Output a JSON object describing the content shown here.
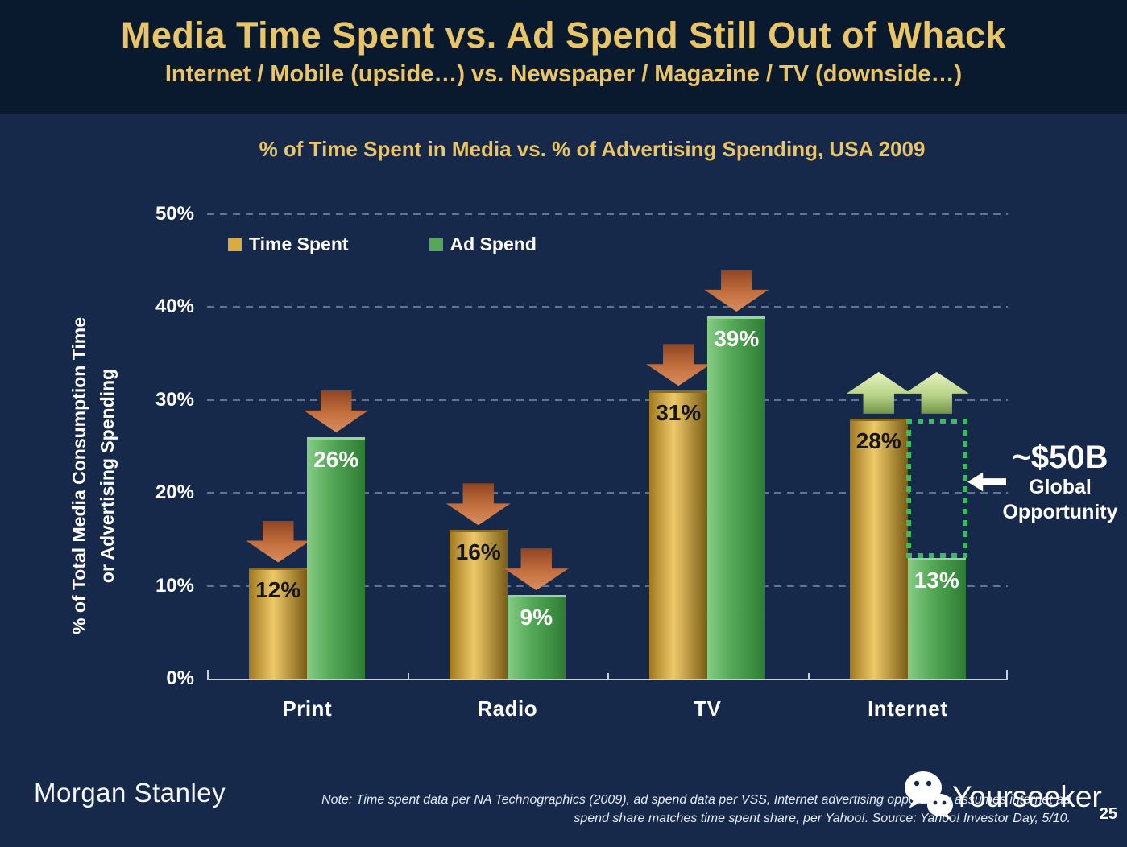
{
  "palette": {
    "background": "#16294a",
    "header_background": "#0a1a2e",
    "gold_text": "#eac567",
    "grid_color": "rgba(190,205,228,0.45)",
    "axis_color": "#c6d0df",
    "opportunity_green": "#3db863"
  },
  "header": {
    "title": "Media Time Spent vs. Ad Spend Still Out of Whack",
    "subtitle": "Internet / Mobile (upside…) vs. Newspaper / Magazine / TV (downside…)"
  },
  "chart_data": {
    "type": "bar",
    "title": "% of Time Spent in Media vs. % of Advertising Spending, USA 2009",
    "ylabel_line1": "% of Total Media Consumption Time",
    "ylabel_line2": "or Advertising Spending",
    "categories": [
      "Print",
      "Radio",
      "TV",
      "Internet"
    ],
    "series": [
      {
        "name": "Time Spent",
        "values": [
          12,
          16,
          31,
          28
        ],
        "swatch": "#d9ab44",
        "gradient": [
          "#a0791f",
          "#eec968",
          "#7a5c15"
        ],
        "cap": "#8a6a22",
        "label_color": "#161616"
      },
      {
        "name": "Ad Spend",
        "values": [
          26,
          9,
          39,
          13
        ],
        "swatch": "#55a85a",
        "gradient": [
          "#86cc85",
          "#54a857",
          "#2e7c34"
        ],
        "cap": "#9bd49b",
        "label_color": "#ffffff"
      }
    ],
    "value_labels": [
      [
        "12%",
        "26%"
      ],
      [
        "16%",
        "9%"
      ],
      [
        "31%",
        "39%"
      ],
      [
        "28%",
        "13%"
      ]
    ],
    "ylim": [
      0,
      50
    ],
    "yticks": [
      "0%",
      "10%",
      "20%",
      "30%",
      "40%",
      "50%"
    ],
    "grid": "horizontal-dashed",
    "legend_position": "top-left-inside",
    "markers": [
      [
        "down",
        "down"
      ],
      [
        "down",
        "down"
      ],
      [
        "down",
        "down"
      ],
      [
        "up",
        "up"
      ]
    ],
    "marker_colors": {
      "down": [
        "#8f4522",
        "#c4703f",
        "#d98d5e"
      ],
      "up": [
        "#e8f2c0",
        "#b8d388",
        "#729448"
      ]
    },
    "annotation": {
      "category_index": 3,
      "series_index": 1,
      "from_value": 13,
      "to_value": 28,
      "label_line1": "~$50B",
      "label_line2": "Global",
      "label_line3": "Opportunity"
    }
  },
  "footer": {
    "logo": "Morgan Stanley",
    "note_line1": "Note: Time spent data per NA Technographics (2009), ad spend data per VSS, Internet advertising opportunity assumes internet ad",
    "note_line2": "spend share matches time spent share, per Yahoo!. Source: Yahoo! Investor Day, 5/10.",
    "watermark": "Yourseeker",
    "page_number": "25"
  }
}
